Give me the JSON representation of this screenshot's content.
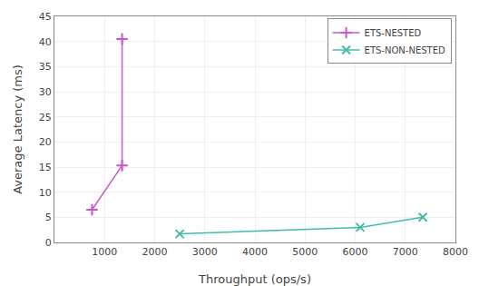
{
  "chart_data": {
    "type": "line",
    "xlabel": "Throughput (ops/s)",
    "ylabel": "Average Latency (ms)",
    "series": [
      {
        "name": "ETS-NESTED",
        "color": "#cc55cc",
        "marker": "plus",
        "x": [
          750,
          1350,
          1350
        ],
        "values": [
          6.5,
          15.3,
          40.5
        ]
      },
      {
        "name": "ETS-NON-NESTED",
        "color": "#44bbaa",
        "marker": "x",
        "x": [
          2500,
          6100,
          7350
        ],
        "values": [
          1.7,
          3.0,
          5.0
        ]
      }
    ],
    "xlim": [
      0,
      8000
    ],
    "xticks": [
      1000,
      2000,
      3000,
      4000,
      5000,
      6000,
      7000,
      8000
    ],
    "ylim": [
      0,
      45
    ],
    "yticks": [
      0,
      5,
      10,
      15,
      20,
      25,
      30,
      35,
      40,
      45
    ],
    "grid": true,
    "legend": "upper right"
  }
}
